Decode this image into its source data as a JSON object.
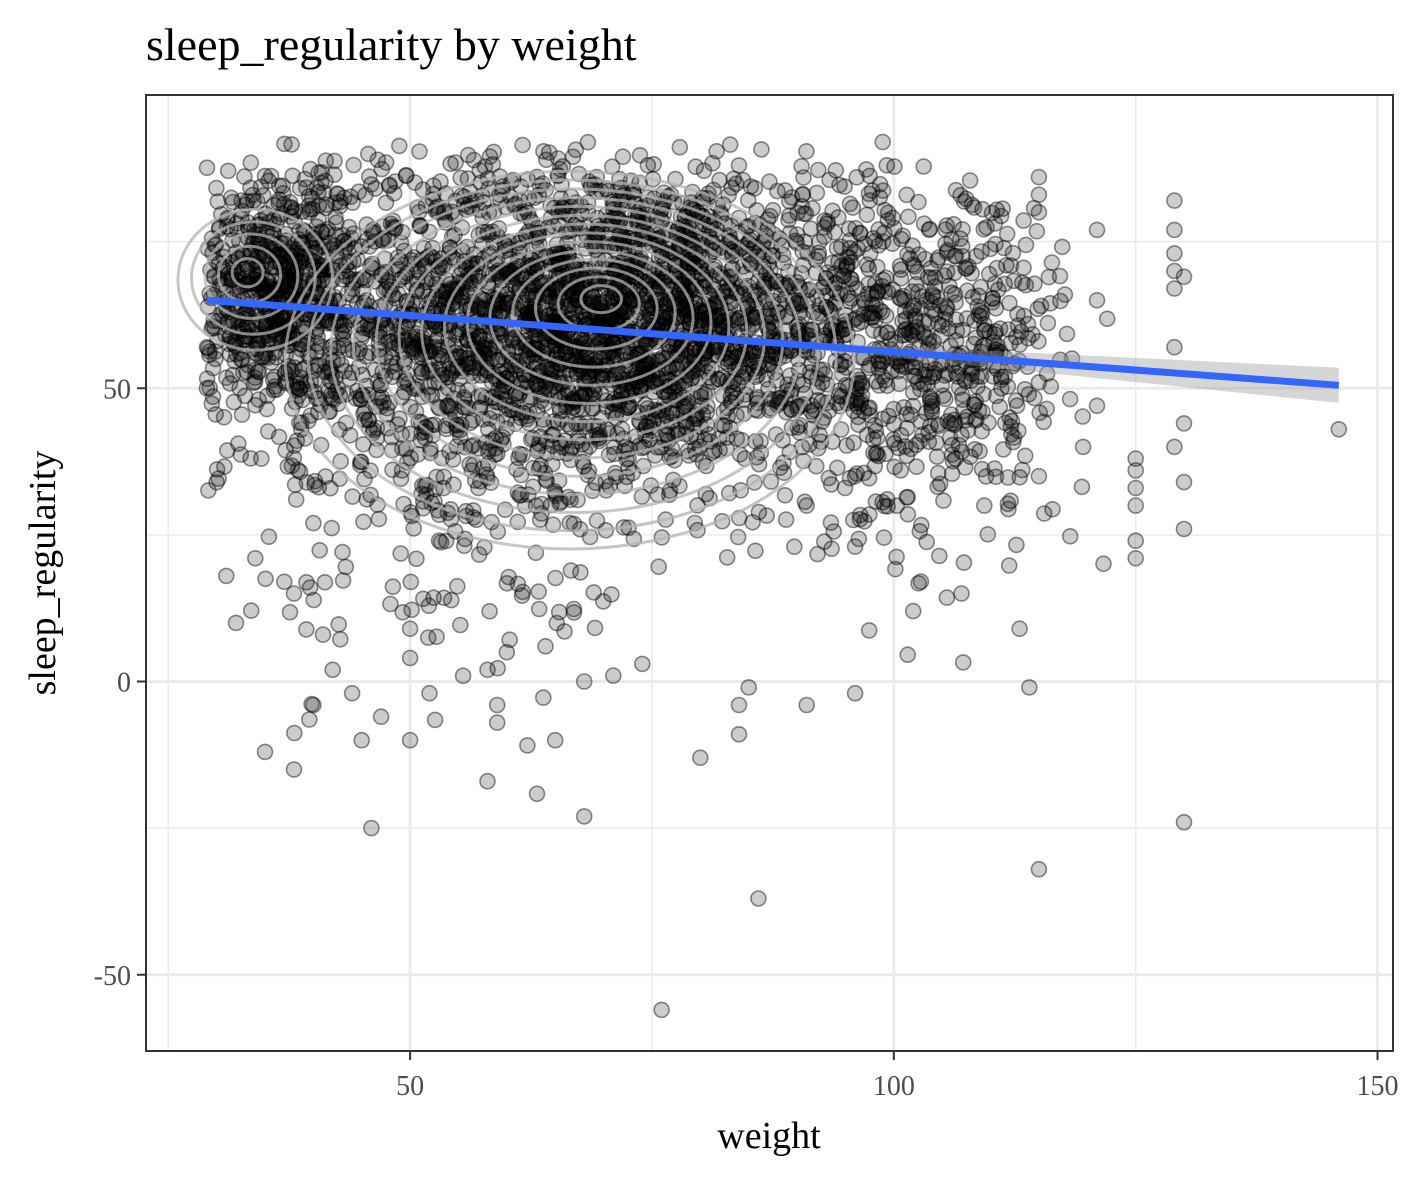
{
  "chart_data": {
    "type": "scatter",
    "title": "sleep_regularity by weight",
    "xlabel": "weight",
    "ylabel": "sleep_regularity",
    "xlim": [
      22.7,
      151.6
    ],
    "ylim": [
      -63,
      100
    ],
    "x_ticks": [
      50,
      100,
      150
    ],
    "x_tick_labels": [
      "50",
      "100",
      "150"
    ],
    "y_ticks": [
      -50,
      0,
      50
    ],
    "y_tick_labels": [
      "-50",
      "0",
      "50"
    ],
    "grid": true,
    "legend": "none",
    "colors": {
      "points": "#000000",
      "trend": "#3366ff",
      "confidence_band": "#999999",
      "contour": "#b3b3b3",
      "grid": "#ebebeb",
      "panel_border": "#333333"
    },
    "trend_line": {
      "x": [
        29,
        146
      ],
      "y": [
        65,
        50.5
      ],
      "ci_upper_end": 53.5,
      "ci_lower_end": 47.5
    },
    "density_peaks": [
      {
        "x": 70,
        "y": 66
      },
      {
        "x": 33,
        "y": 70
      }
    ],
    "scatter_clusters": [
      {
        "cx": 72,
        "cy": 62,
        "sx": 13,
        "sy": 13,
        "n": 2200
      },
      {
        "cx": 36,
        "cy": 66,
        "sx": 6,
        "sy": 10,
        "n": 700
      },
      {
        "cx": 100,
        "cy": 56,
        "sx": 7,
        "sy": 15,
        "n": 500
      },
      {
        "cx": 55,
        "cy": 52,
        "sx": 12,
        "sy": 22,
        "n": 700
      },
      {
        "cx": 110,
        "cy": 55,
        "sx": 5,
        "sy": 14,
        "n": 150
      }
    ],
    "notable_points": [
      {
        "x": 29,
        "y": 50
      },
      {
        "x": 29,
        "y": 57
      },
      {
        "x": 31,
        "y": 18
      },
      {
        "x": 32,
        "y": 10
      },
      {
        "x": 35,
        "y": -12
      },
      {
        "x": 38,
        "y": -15
      },
      {
        "x": 40,
        "y": -4
      },
      {
        "x": 44,
        "y": -2
      },
      {
        "x": 45,
        "y": -10
      },
      {
        "x": 46,
        "y": -25
      },
      {
        "x": 47,
        "y": -6
      },
      {
        "x": 50,
        "y": -10
      },
      {
        "x": 52,
        "y": -2
      },
      {
        "x": 58,
        "y": -17
      },
      {
        "x": 59,
        "y": -4
      },
      {
        "x": 59,
        "y": -7
      },
      {
        "x": 65,
        "y": -10
      },
      {
        "x": 68,
        "y": -23
      },
      {
        "x": 76,
        "y": -56
      },
      {
        "x": 80,
        "y": -13
      },
      {
        "x": 84,
        "y": -4
      },
      {
        "x": 84,
        "y": -9
      },
      {
        "x": 85,
        "y": -1
      },
      {
        "x": 86,
        "y": -37
      },
      {
        "x": 91,
        "y": -4
      },
      {
        "x": 96,
        "y": -2
      },
      {
        "x": 114,
        "y": -1
      },
      {
        "x": 115,
        "y": -32
      },
      {
        "x": 130,
        "y": -24
      },
      {
        "x": 146,
        "y": 43
      },
      {
        "x": 121,
        "y": 47
      },
      {
        "x": 121,
        "y": 65
      },
      {
        "x": 121,
        "y": 77
      },
      {
        "x": 125,
        "y": 21
      },
      {
        "x": 125,
        "y": 24
      },
      {
        "x": 125,
        "y": 30
      },
      {
        "x": 125,
        "y": 33
      },
      {
        "x": 125,
        "y": 36
      },
      {
        "x": 125,
        "y": 38
      },
      {
        "x": 129,
        "y": 82
      },
      {
        "x": 129,
        "y": 77
      },
      {
        "x": 129,
        "y": 73
      },
      {
        "x": 129,
        "y": 70
      },
      {
        "x": 129,
        "y": 67
      },
      {
        "x": 129,
        "y": 57
      },
      {
        "x": 129,
        "y": 40
      },
      {
        "x": 130,
        "y": 44
      },
      {
        "x": 130,
        "y": 34
      },
      {
        "x": 130,
        "y": 26
      },
      {
        "x": 130,
        "y": 69
      },
      {
        "x": 84,
        "y": 88
      },
      {
        "x": 115,
        "y": 86
      },
      {
        "x": 115,
        "y": 83
      },
      {
        "x": 115,
        "y": 80
      },
      {
        "x": 115,
        "y": 51
      },
      {
        "x": 115,
        "y": 35
      },
      {
        "x": 96,
        "y": 35
      },
      {
        "x": 96,
        "y": 23
      },
      {
        "x": 71,
        "y": 1
      },
      {
        "x": 58,
        "y": 2
      },
      {
        "x": 74,
        "y": 3
      },
      {
        "x": 113,
        "y": 9
      },
      {
        "x": 102,
        "y": 12
      },
      {
        "x": 107,
        "y": 15
      },
      {
        "x": 34,
        "y": 21
      },
      {
        "x": 37,
        "y": 17
      },
      {
        "x": 38,
        "y": 15
      },
      {
        "x": 41,
        "y": 8
      },
      {
        "x": 42,
        "y": 2
      },
      {
        "x": 40,
        "y": 27
      },
      {
        "x": 50,
        "y": 4
      },
      {
        "x": 50,
        "y": 9
      },
      {
        "x": 53,
        "y": 24
      },
      {
        "x": 60,
        "y": 5
      },
      {
        "x": 64,
        "y": 6
      },
      {
        "x": 68,
        "y": 0
      }
    ]
  }
}
